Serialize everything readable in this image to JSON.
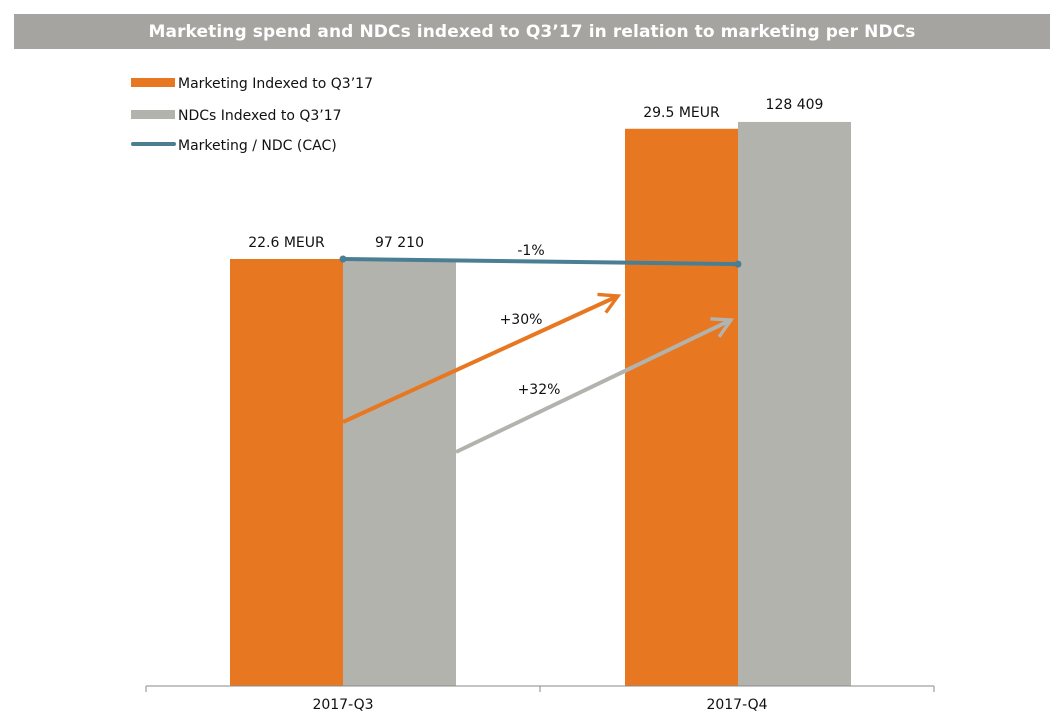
{
  "chart_data": {
    "type": "bar",
    "title": "Marketing spend and NDCs indexed to Q3’17 in relation to marketing per NDCs",
    "categories": [
      "2017-Q3",
      "2017-Q4"
    ],
    "ylim": [
      0,
      100
    ],
    "grid": false,
    "legend_position": "top-left",
    "series": [
      {
        "key": "marketing",
        "name": "Marketing Indexed to Q3’17",
        "color": "#e87722",
        "index_values": [
          100,
          130.5
        ],
        "labels": [
          "22.6 MEUR",
          "29.5 MEUR"
        ]
      },
      {
        "key": "ndc",
        "name": "NDCs Indexed to Q3’17",
        "color": "#b3b3ae",
        "index_values": [
          100,
          132.1
        ],
        "labels": [
          "97 210",
          "128 409"
        ]
      }
    ],
    "line_series": {
      "name": "Marketing / NDC (CAC)",
      "color": "#4a7f93",
      "index_values": [
        100,
        98.8
      ]
    },
    "annotations": [
      {
        "key": "cac",
        "text": "-1%"
      },
      {
        "key": "marketing",
        "text": "+30%"
      },
      {
        "key": "ndc",
        "text": "+32%"
      }
    ]
  }
}
